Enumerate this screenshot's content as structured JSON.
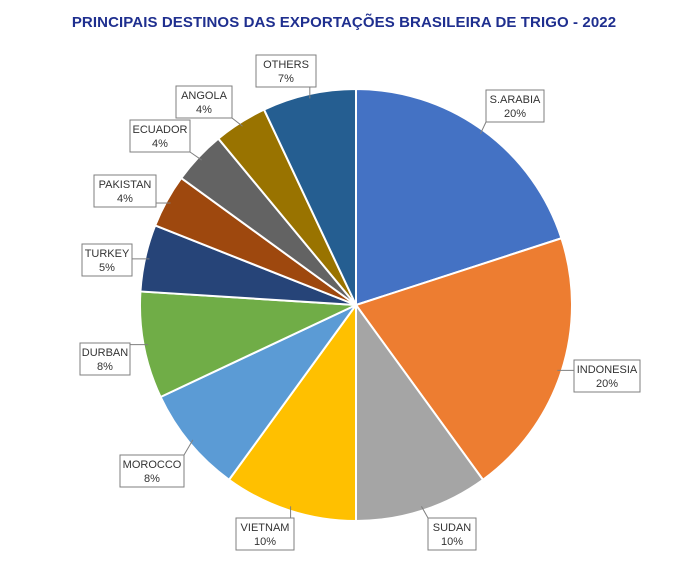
{
  "chart_data": {
    "type": "pie",
    "title": "PRINCIPAIS DESTINOS DAS EXPORTAÇÕES BRASILEIRA DE TRIGO - 2022",
    "unit": "%",
    "slices": [
      {
        "name": "S.ARABIA",
        "label": "S.ARABIA",
        "value_label": "20%",
        "value": 20,
        "color": "#4472c4"
      },
      {
        "name": "INDONESIA",
        "label": "INDONESIA",
        "value_label": "20%",
        "value": 20,
        "color": "#ed7d31"
      },
      {
        "name": "SUDAN",
        "label": "SUDAN",
        "value_label": "10%",
        "value": 10,
        "color": "#a5a5a5"
      },
      {
        "name": "VIETNAM",
        "label": "VIETNAM",
        "value_label": "10%",
        "value": 10,
        "color": "#ffc000"
      },
      {
        "name": "MOROCCO",
        "label": "MOROCCO",
        "value_label": "8%",
        "value": 8,
        "color": "#5b9bd5"
      },
      {
        "name": "DURBAN",
        "label": "DURBAN",
        "value_label": "8%",
        "value": 8,
        "color": "#70ad47"
      },
      {
        "name": "TURKEY",
        "label": "TURKEY",
        "value_label": "5%",
        "value": 5,
        "color": "#264478"
      },
      {
        "name": "PAKISTAN",
        "label": "PAKISTAN",
        "value_label": "4%",
        "value": 4,
        "color": "#9e480e"
      },
      {
        "name": "ECUADOR",
        "label": "ECUADOR",
        "value_label": "4%",
        "value": 4,
        "color": "#636363"
      },
      {
        "name": "ANGOLA",
        "label": "ANGOLA",
        "value_label": "4%",
        "value": 4,
        "color": "#997300"
      },
      {
        "name": "OTHERS",
        "label": "OTHERS",
        "value_label": "7%",
        "value": 7,
        "color": "#255e91"
      }
    ]
  }
}
